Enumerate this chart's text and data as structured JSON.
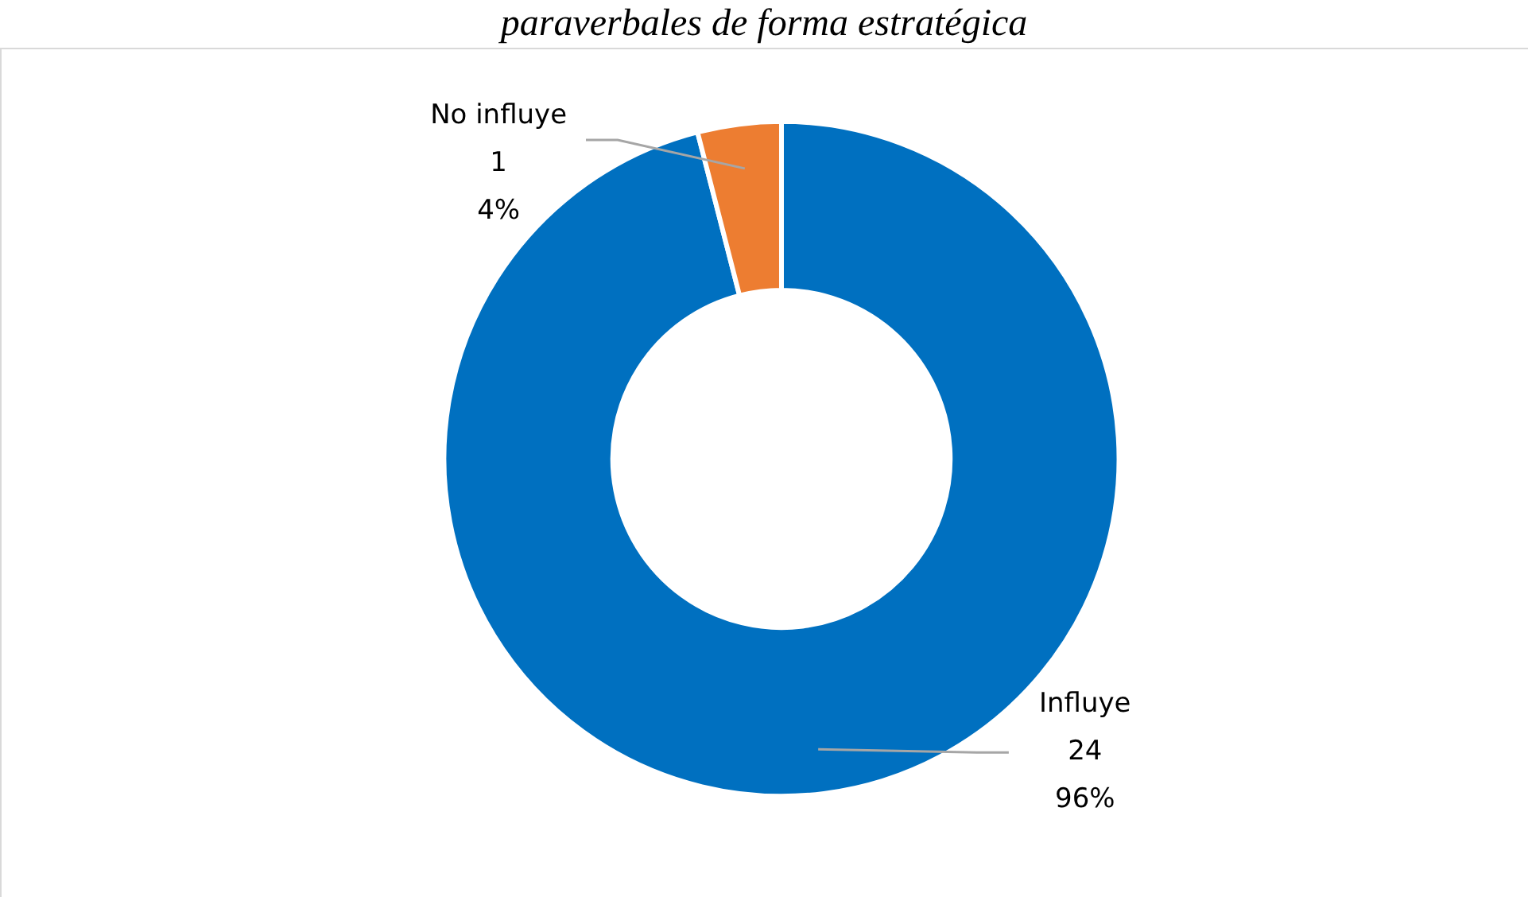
{
  "chart_data": {
    "type": "donut",
    "title": "paraverbales de forma estratégica",
    "categories": [
      "Influye",
      "No influye"
    ],
    "values": [
      24,
      1
    ],
    "colors": [
      "#0070c0",
      "#ed7d31"
    ],
    "value_labels": [
      "24\n96%",
      "1\n4%"
    ],
    "legend": false
  }
}
